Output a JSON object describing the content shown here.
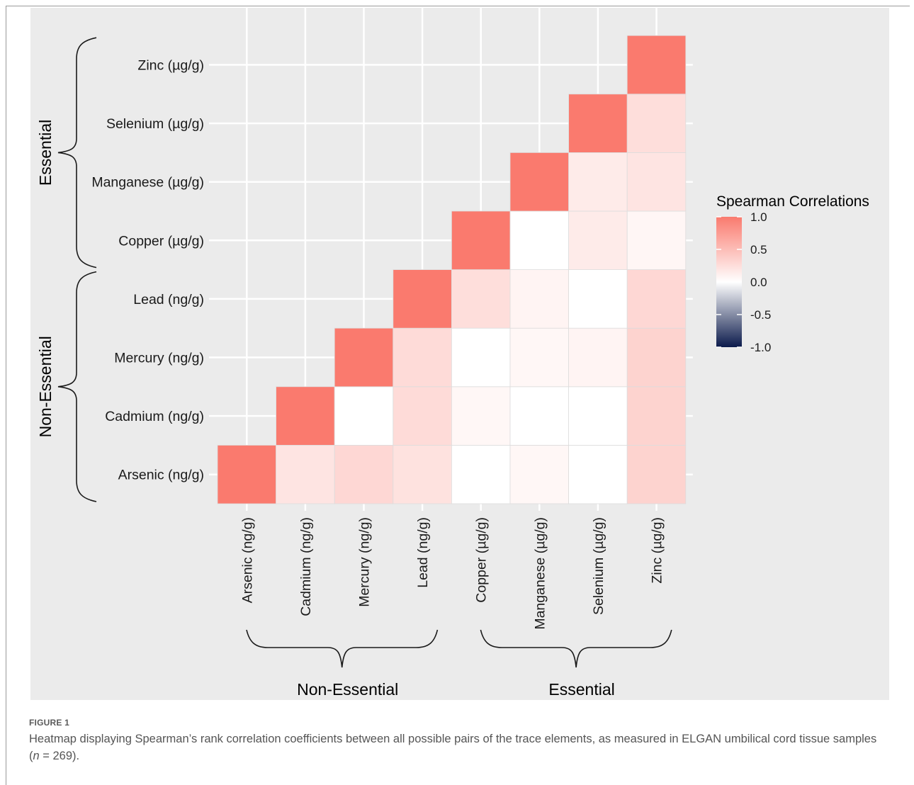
{
  "figure": {
    "label": "FIGURE 1",
    "caption_before": "Heatmap displaying Spearman’s rank correlation coefficients between all possible pairs of the trace elements, as measured in ELGAN umbilical cord tissue samples (",
    "caption_italic": "n",
    "caption_after": " = 269)."
  },
  "chart_data": {
    "type": "heatmap",
    "title": "",
    "variables": [
      "Arsenic (ng/g)",
      "Cadmium (ng/g)",
      "Mercury (ng/g)",
      "Lead (ng/g)",
      "Copper (µg/g)",
      "Manganese (µg/g)",
      "Selenium (µg/g)",
      "Zinc (µg/g)"
    ],
    "groups": [
      {
        "label": "Non-Essential",
        "members": [
          "Arsenic (ng/g)",
          "Cadmium (ng/g)",
          "Mercury (ng/g)",
          "Lead (ng/g)"
        ]
      },
      {
        "label": "Essential",
        "members": [
          "Copper (µg/g)",
          "Manganese (µg/g)",
          "Selenium (µg/g)",
          "Zinc (µg/g)"
        ]
      }
    ],
    "cells": [
      {
        "x": "Arsenic (ng/g)",
        "y": "Arsenic (ng/g)",
        "value": 1.0
      },
      {
        "x": "Cadmium (ng/g)",
        "y": "Arsenic (ng/g)",
        "value": 0.2
      },
      {
        "x": "Mercury (ng/g)",
        "y": "Arsenic (ng/g)",
        "value": 0.3
      },
      {
        "x": "Lead (ng/g)",
        "y": "Arsenic (ng/g)",
        "value": 0.22
      },
      {
        "x": "Copper (µg/g)",
        "y": "Arsenic (ng/g)",
        "value": 0.0
      },
      {
        "x": "Manganese (µg/g)",
        "y": "Arsenic (ng/g)",
        "value": 0.06
      },
      {
        "x": "Selenium (µg/g)",
        "y": "Arsenic (ng/g)",
        "value": 0.0
      },
      {
        "x": "Zinc (µg/g)",
        "y": "Arsenic (ng/g)",
        "value": 0.33
      },
      {
        "x": "Cadmium (ng/g)",
        "y": "Cadmium (ng/g)",
        "value": 1.0
      },
      {
        "x": "Mercury (ng/g)",
        "y": "Cadmium (ng/g)",
        "value": 0.0
      },
      {
        "x": "Lead (ng/g)",
        "y": "Cadmium (ng/g)",
        "value": 0.27
      },
      {
        "x": "Copper (µg/g)",
        "y": "Cadmium (ng/g)",
        "value": 0.06
      },
      {
        "x": "Manganese (µg/g)",
        "y": "Cadmium (ng/g)",
        "value": 0.0
      },
      {
        "x": "Selenium (µg/g)",
        "y": "Cadmium (ng/g)",
        "value": 0.0
      },
      {
        "x": "Zinc (µg/g)",
        "y": "Cadmium (ng/g)",
        "value": 0.33
      },
      {
        "x": "Mercury (ng/g)",
        "y": "Mercury (ng/g)",
        "value": 1.0
      },
      {
        "x": "Lead (ng/g)",
        "y": "Mercury (ng/g)",
        "value": 0.27
      },
      {
        "x": "Copper (µg/g)",
        "y": "Mercury (ng/g)",
        "value": 0.0
      },
      {
        "x": "Manganese (µg/g)",
        "y": "Mercury (ng/g)",
        "value": 0.06
      },
      {
        "x": "Selenium (µg/g)",
        "y": "Mercury (ng/g)",
        "value": 0.08
      },
      {
        "x": "Zinc (µg/g)",
        "y": "Mercury (ng/g)",
        "value": 0.33
      },
      {
        "x": "Lead (ng/g)",
        "y": "Lead (ng/g)",
        "value": 1.0
      },
      {
        "x": "Copper (µg/g)",
        "y": "Lead (ng/g)",
        "value": 0.25
      },
      {
        "x": "Manganese (µg/g)",
        "y": "Lead (ng/g)",
        "value": 0.08
      },
      {
        "x": "Selenium (µg/g)",
        "y": "Lead (ng/g)",
        "value": 0.0
      },
      {
        "x": "Zinc (µg/g)",
        "y": "Lead (ng/g)",
        "value": 0.3
      },
      {
        "x": "Copper (µg/g)",
        "y": "Copper (µg/g)",
        "value": 1.0
      },
      {
        "x": "Manganese (µg/g)",
        "y": "Copper (µg/g)",
        "value": 0.0
      },
      {
        "x": "Selenium (µg/g)",
        "y": "Copper (µg/g)",
        "value": 0.15
      },
      {
        "x": "Zinc (µg/g)",
        "y": "Copper (µg/g)",
        "value": 0.07
      },
      {
        "x": "Manganese (µg/g)",
        "y": "Manganese (µg/g)",
        "value": 1.0
      },
      {
        "x": "Selenium (µg/g)",
        "y": "Manganese (µg/g)",
        "value": 0.15
      },
      {
        "x": "Zinc (µg/g)",
        "y": "Manganese (µg/g)",
        "value": 0.2
      },
      {
        "x": "Selenium (µg/g)",
        "y": "Selenium (µg/g)",
        "value": 1.0
      },
      {
        "x": "Zinc (µg/g)",
        "y": "Selenium (µg/g)",
        "value": 0.25
      },
      {
        "x": "Zinc (µg/g)",
        "y": "Zinc (µg/g)",
        "value": 1.0
      }
    ],
    "legend": {
      "title": "Spearman Correlations",
      "ticks": [
        "1.0",
        "0.5",
        "0.0",
        "-0.5",
        "-1.0"
      ],
      "range": [
        -1.0,
        1.0
      ],
      "colors": {
        "high": "#fa7a6e",
        "mid": "#ffffff",
        "low": "#0b1a4b"
      },
      "placement": "right"
    },
    "grid": true,
    "colors": {
      "background": "#ebebeb",
      "gridline": "#ffffff",
      "tile_border": "#dddddd"
    }
  }
}
